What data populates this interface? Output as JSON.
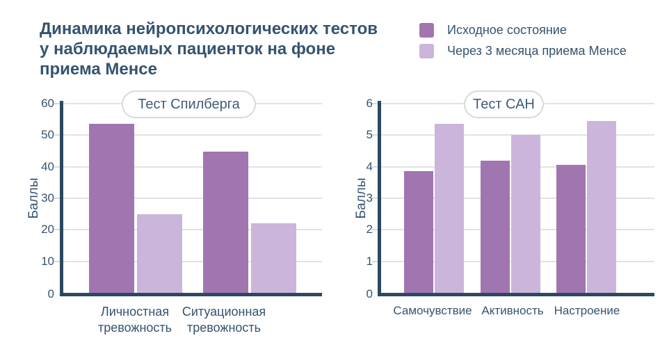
{
  "title": {
    "line1": "Динамика нейропсихологических тестов",
    "line2": "у наблюдаемых пациенток на фоне",
    "line3": "приема Менсе"
  },
  "legend": {
    "items": [
      {
        "label": "Исходное состояние",
        "color": "#a176b0"
      },
      {
        "label": "Через 3 месяца приема Менсе",
        "color": "#cbb5da"
      }
    ]
  },
  "colors": {
    "axis": "#2b4961",
    "text": "#35536f",
    "gridline": "#e2e2e4",
    "tick_stub": "#d9dadc",
    "series_initial": "#a176b0",
    "series_after": "#cbb5da",
    "badge_border": "#d5d9dd",
    "background": "#ffffff"
  },
  "chart_data": [
    {
      "type": "bar",
      "title": "Тест Спилберга",
      "ylabel": "Баллы",
      "ylim": [
        0,
        60
      ],
      "yticks": [
        0,
        10,
        20,
        30,
        40,
        50,
        60
      ],
      "grid": true,
      "legend_position": "top-right-of-figure",
      "categories": [
        "Личностная тревожность",
        "Ситуационная тревожность"
      ],
      "series": [
        {
          "name": "Исходное состояние",
          "values": [
            53.5,
            44.7
          ]
        },
        {
          "name": "Через 3 месяца приема Менсе",
          "values": [
            25,
            22
          ]
        }
      ]
    },
    {
      "type": "bar",
      "title": "Тест САН",
      "ylabel": "Баллы",
      "ylim": [
        0,
        6
      ],
      "yticks": [
        0,
        1,
        2,
        3,
        4,
        5,
        6
      ],
      "grid": true,
      "legend_position": "top-right-of-figure",
      "categories": [
        "Самочувствие",
        "Активность",
        "Настроение"
      ],
      "series": [
        {
          "name": "Исходное состояние",
          "values": [
            3.85,
            4.2,
            4.05
          ]
        },
        {
          "name": "Через 3 месяца приема Менсе",
          "values": [
            5.35,
            5.0,
            5.45
          ]
        }
      ]
    }
  ]
}
